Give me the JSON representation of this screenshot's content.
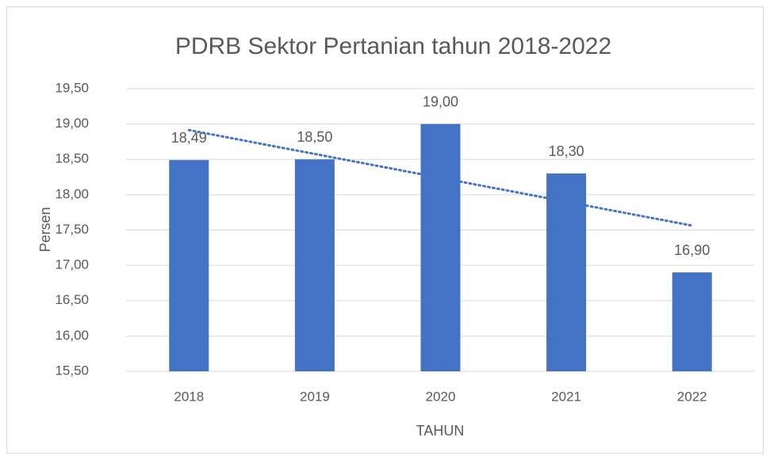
{
  "chart_data": {
    "type": "bar",
    "title": "PDRB Sektor Pertanian tahun 2018-2022",
    "xlabel": "TAHUN",
    "ylabel": "Persen",
    "categories": [
      "2018",
      "2019",
      "2020",
      "2021",
      "2022"
    ],
    "values": [
      18.49,
      18.5,
      19.0,
      18.3,
      16.9
    ],
    "value_labels": [
      "18,49",
      "18,50",
      "19,00",
      "18,30",
      "16,90"
    ],
    "color": "#4472c4",
    "ylim": [
      15.5,
      19.5
    ],
    "yticks": [
      {
        "value": 15.5,
        "label": "15,50"
      },
      {
        "value": 16,
        "label": "16,00"
      },
      {
        "value": 16.5,
        "label": "16,50"
      },
      {
        "value": 17,
        "label": "17,00"
      },
      {
        "value": 17.5,
        "label": "17,50"
      },
      {
        "value": 18,
        "label": "18,00"
      },
      {
        "value": 18.5,
        "label": "18,50"
      },
      {
        "value": 19,
        "label": "19,00"
      },
      {
        "value": 19.5,
        "label": "19,50"
      }
    ],
    "grid": true,
    "trendline": "linear"
  }
}
